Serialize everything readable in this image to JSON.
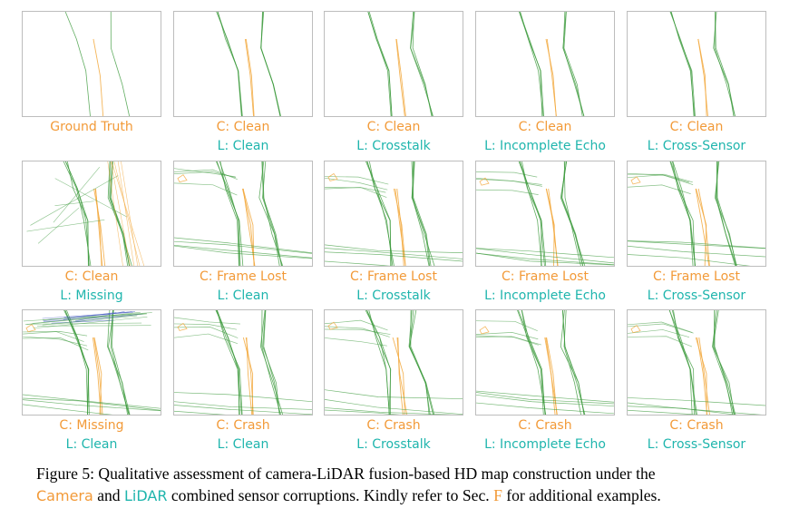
{
  "colors": {
    "camera": "#f29a38",
    "lidar": "#1fb5ad",
    "pred_green": "#3c9a3c",
    "pred_orange": "#f2a83c",
    "pred_blue": "#4a5fc2"
  },
  "panels": [
    {
      "camera": "Ground Truth",
      "lidar": ""
    },
    {
      "camera": "C: Clean",
      "lidar": "L: Clean"
    },
    {
      "camera": "C: Clean",
      "lidar": "L: Crosstalk"
    },
    {
      "camera": "C: Clean",
      "lidar": "L: Incomplete Echo"
    },
    {
      "camera": "C: Clean",
      "lidar": "L: Cross-Sensor"
    },
    {
      "camera": "C: Clean",
      "lidar": "L: Missing"
    },
    {
      "camera": "C: Frame Lost",
      "lidar": "L: Clean"
    },
    {
      "camera": "C: Frame Lost",
      "lidar": "L: Crosstalk"
    },
    {
      "camera": "C: Frame Lost",
      "lidar": "L: Incomplete Echo"
    },
    {
      "camera": "C: Frame Lost",
      "lidar": "L: Cross-Sensor"
    },
    {
      "camera": "C: Missing",
      "lidar": "L: Clean"
    },
    {
      "camera": "C: Crash",
      "lidar": "L: Clean"
    },
    {
      "camera": "C: Crash",
      "lidar": "L: Crosstalk"
    },
    {
      "camera": "C: Crash",
      "lidar": "L: Incomplete Echo"
    },
    {
      "camera": "C: Crash",
      "lidar": "L: Cross-Sensor"
    }
  ],
  "caption": {
    "prefix": "Figure 5: Qualitative assessment of camera-LiDAR fusion-based HD map construction under the",
    "camera_word": "Camera",
    "and_word": " and ",
    "lidar_word": "LiDAR",
    "middle": " combined sensor corruptions. Kindly refer to Sec. ",
    "sec_ref": "F",
    "suffix": " for additional examples."
  }
}
